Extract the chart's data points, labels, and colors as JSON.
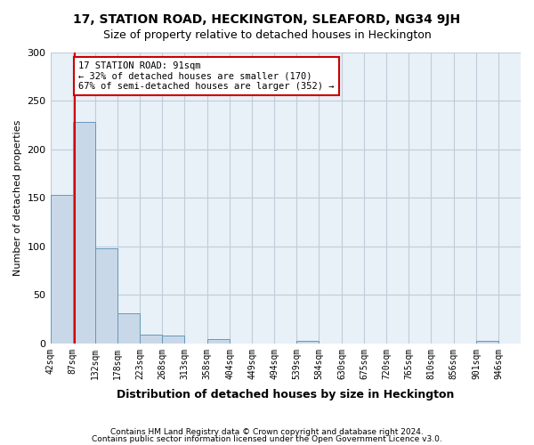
{
  "title": "17, STATION ROAD, HECKINGTON, SLEAFORD, NG34 9JH",
  "subtitle": "Size of property relative to detached houses in Heckington",
  "xlabel": "Distribution of detached houses by size in Heckington",
  "ylabel": "Number of detached properties",
  "footer_line1": "Contains HM Land Registry data © Crown copyright and database right 2024.",
  "footer_line2": "Contains public sector information licensed under the Open Government Licence v3.0.",
  "bin_edges": [
    42,
    87,
    132,
    178,
    223,
    268,
    313,
    358,
    404,
    449,
    494,
    539,
    584,
    630,
    675,
    720,
    765,
    810,
    856,
    901,
    946
  ],
  "bar_heights": [
    153,
    228,
    98,
    31,
    9,
    8,
    0,
    4,
    0,
    0,
    0,
    3,
    0,
    0,
    0,
    0,
    0,
    0,
    0,
    3
  ],
  "bar_color": "#c8d8e8",
  "bar_edgecolor": "#6699bb",
  "grid_color": "#c0ccd8",
  "background_color": "#e8f0f8",
  "redline_x": 91,
  "redline_color": "#cc0000",
  "annotation_title": "17 STATION ROAD: 91sqm",
  "annotation_line1": "← 32% of detached houses are smaller (170)",
  "annotation_line2": "67% of semi-detached houses are larger (352) →",
  "annotation_box_color": "#ffffff",
  "annotation_box_edgecolor": "#cc0000",
  "ylim": [
    0,
    300
  ],
  "yticks": [
    0,
    50,
    100,
    150,
    200,
    250,
    300
  ],
  "tick_labels": [
    "42sqm",
    "87sqm",
    "132sqm",
    "178sqm",
    "223sqm",
    "268sqm",
    "313sqm",
    "358sqm",
    "404sqm",
    "449sqm",
    "494sqm",
    "539sqm",
    "584sqm",
    "630sqm",
    "675sqm",
    "720sqm",
    "765sqm",
    "810sqm",
    "856sqm",
    "901sqm",
    "946sqm"
  ]
}
